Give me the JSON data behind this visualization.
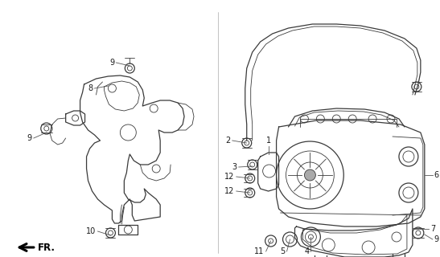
{
  "bg_color": "#ffffff",
  "line_color": "#3a3a3a",
  "label_color": "#1a1a1a",
  "figsize": [
    5.47,
    3.2
  ],
  "dpi": 100
}
